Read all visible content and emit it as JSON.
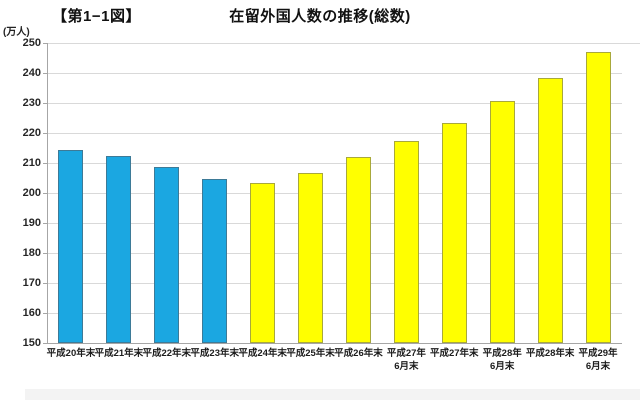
{
  "header": {
    "figure_label": "【第1−1図】",
    "title": "在留外国人数の推移(総数)",
    "unit_label": "(万人)"
  },
  "chart_data": {
    "type": "bar",
    "title": "在留外国人数の推移(総数)",
    "figure_label": "【第1−1図】",
    "ylabel": "(万人)",
    "xlabel": "",
    "grid": true,
    "legend": "none",
    "ylim": [
      150,
      250
    ],
    "yticks": [
      150,
      160,
      170,
      180,
      190,
      200,
      210,
      220,
      230,
      240,
      250
    ],
    "categories": [
      "平成20年末",
      "平成21年末",
      "平成22年末",
      "平成23年末",
      "平成24年末",
      "平成25年末",
      "平成26年末",
      "平成27年\n6月末",
      "平成27年末",
      "平成28年\n6月末",
      "平成28年末",
      "平成29年\n6月末"
    ],
    "values": [
      214.5,
      212.5,
      208.7,
      204.7,
      203.3,
      206.6,
      212.1,
      217.2,
      223.2,
      230.7,
      238.3,
      247.1
    ],
    "bar_colors": [
      "blue",
      "blue",
      "blue",
      "blue",
      "yellow",
      "yellow",
      "yellow",
      "yellow",
      "yellow",
      "yellow",
      "yellow",
      "yellow"
    ],
    "palette": {
      "blue": "#1ba7e1",
      "blue_border": "#3d7a97",
      "yellow": "#ffff00",
      "yellow_border": "#a8a83c",
      "gridline": "#d9d9d9",
      "axis": "#a6a6a6"
    }
  }
}
